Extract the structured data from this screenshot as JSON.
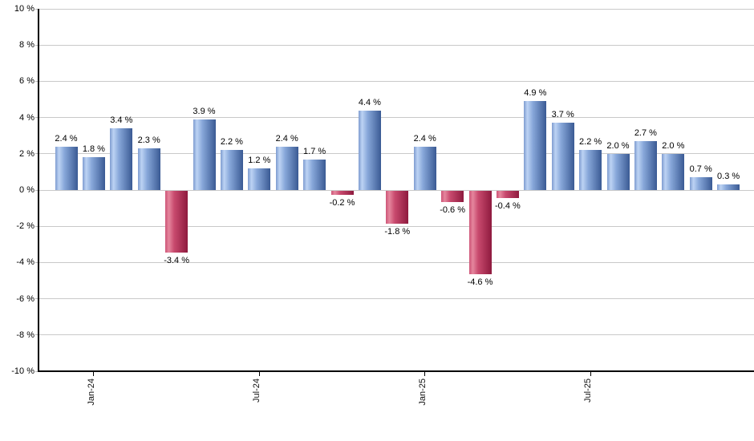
{
  "chart": {
    "background": "#ffffff",
    "grid_color": "#c9c9c9",
    "axis_color": "#000000",
    "text_color": "#000000",
    "bar_colors": {
      "positive": {
        "edge": "#7e9cd0",
        "light": "#bdd3f4",
        "mid": "#88a8da",
        "dark": "#3a5a94"
      },
      "negative": {
        "edge": "#cd5577",
        "light": "#e5869d",
        "mid": "#c84a6e",
        "dark": "#8e1a3e"
      }
    }
  },
  "chart_data": {
    "type": "bar",
    "title": "",
    "xlabel": "",
    "ylabel": "",
    "legend": false,
    "grid": true,
    "values": [
      2.4,
      1.8,
      3.4,
      2.3,
      -3.4,
      3.9,
      2.2,
      1.2,
      2.4,
      1.7,
      -0.2,
      4.4,
      -1.8,
      2.4,
      -0.6,
      -4.6,
      -0.4,
      4.9,
      3.7,
      2.2,
      2.0,
      2.7,
      2.0,
      0.7,
      0.3
    ],
    "bar_labels": [
      "2.4 %",
      "1.8 %",
      "3.4 %",
      "2.3 %",
      "-3.4 %",
      "3.9 %",
      "2.2 %",
      "1.2 %",
      "2.4 %",
      "1.7 %",
      "-0.2 %",
      "4.4 %",
      "-1.8 %",
      "2.4 %",
      "-0.6 %",
      "-4.6 %",
      "-0.4 %",
      "4.9 %",
      "3.7 %",
      "2.2 %",
      "2.0 %",
      "2.7 %",
      "2.0 %",
      "0.7 %",
      "0.3 %"
    ],
    "color_rule": "positive bars blue, negative bars red",
    "x_axis": {
      "tick_labels": [
        "Jan-24",
        "Jul-24",
        "Jan-25",
        "Jul-25"
      ],
      "tick_bar_indices": [
        1,
        7,
        13,
        19
      ]
    },
    "y_axis": {
      "unit": "%",
      "min": -10,
      "max": 10,
      "tick_values": [
        10,
        8,
        6,
        4,
        2,
        0,
        -2,
        -4,
        -6,
        -8,
        -10
      ],
      "tick_labels": [
        "10 %",
        "8 %",
        "6 %",
        "4 %",
        "2 %",
        "0 %",
        "-2 %",
        "-4 %",
        "-6 %",
        "-8 %",
        "-10 %"
      ]
    }
  }
}
